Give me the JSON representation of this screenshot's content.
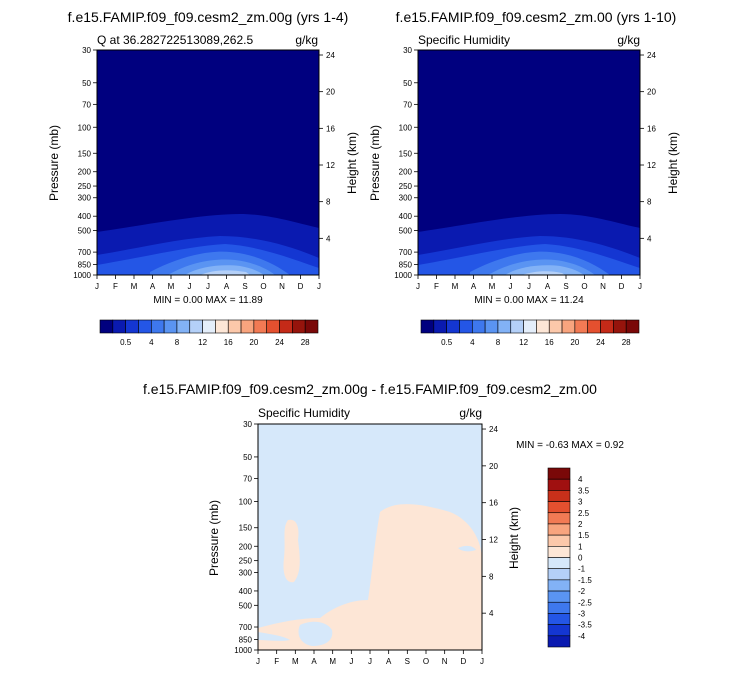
{
  "panels": [
    {
      "title": "f.e15.FAMIP.f09_f09.cesm2_zm.00g (yrs 1-4)",
      "left_label": "Q at 36.282722513089,262.5",
      "units": "g/kg",
      "ylabel": "Pressure (mb)",
      "y2label": "Height (km)",
      "stats": "MIN =   0.00 MAX =  11.89"
    },
    {
      "title": "f.e15.FAMIP.f09_f09.cesm2_zm.00 (yrs 1-10)",
      "left_label": "Specific Humidity",
      "units": "g/kg",
      "ylabel": "Pressure (mb)",
      "y2label": "Height (km)",
      "stats": "MIN =   0.00 MAX =  11.24"
    },
    {
      "title": "f.e15.FAMIP.f09_f09.cesm2_zm.00g - f.e15.FAMIP.f09_f09.cesm2_zm.00",
      "left_label": "Specific Humidity",
      "units": "g/kg",
      "ylabel": "Pressure (mb)",
      "y2label": "Height (km)",
      "stats": "MIN =  -0.63 MAX =   0.92"
    }
  ],
  "chart_data": [
    {
      "type": "heatmap",
      "title": "f.e15.FAMIP.f09_f09.cesm2_zm.00g (yrs 1-4)",
      "x_ticks": [
        "J",
        "F",
        "M",
        "A",
        "M",
        "J",
        "J",
        "A",
        "S",
        "O",
        "N",
        "D",
        "J"
      ],
      "y_ticks": [
        "30",
        "50",
        "70",
        "100",
        "150",
        "200",
        "250",
        "300",
        "400",
        "500",
        "700",
        "850",
        "1000"
      ],
      "y2_ticks": [
        "24",
        "20",
        "16",
        "12",
        "8",
        "4"
      ],
      "ylabel": "Pressure (mb)",
      "y2label": "Height (km)",
      "min": 0.0,
      "max": 11.89,
      "colorbar_labels": [
        "0.5",
        "4",
        "8",
        "12",
        "16",
        "20",
        "24",
        "28"
      ]
    },
    {
      "type": "heatmap",
      "title": "f.e15.FAMIP.f09_f09.cesm2_zm.00 (yrs 1-10)",
      "x_ticks": [
        "J",
        "F",
        "M",
        "A",
        "M",
        "J",
        "J",
        "A",
        "S",
        "O",
        "N",
        "D",
        "J"
      ],
      "y_ticks": [
        "30",
        "50",
        "70",
        "100",
        "150",
        "200",
        "250",
        "300",
        "400",
        "500",
        "700",
        "850",
        "1000"
      ],
      "y2_ticks": [
        "24",
        "20",
        "16",
        "12",
        "8",
        "4"
      ],
      "ylabel": "Pressure (mb)",
      "y2label": "Height (km)",
      "min": 0.0,
      "max": 11.24,
      "colorbar_labels": [
        "0.5",
        "4",
        "8",
        "12",
        "16",
        "20",
        "24",
        "28"
      ]
    },
    {
      "type": "heatmap",
      "title": "f.e15.FAMIP.f09_f09.cesm2_zm.00g - f.e15.FAMIP.f09_f09.cesm2_zm.00",
      "x_ticks": [
        "J",
        "F",
        "M",
        "A",
        "M",
        "J",
        "J",
        "A",
        "S",
        "O",
        "N",
        "D",
        "J"
      ],
      "y_ticks": [
        "30",
        "50",
        "70",
        "100",
        "150",
        "200",
        "250",
        "300",
        "400",
        "500",
        "700",
        "850",
        "1000"
      ],
      "y2_ticks": [
        "24",
        "20",
        "16",
        "12",
        "8",
        "4"
      ],
      "ylabel": "Pressure (mb)",
      "y2label": "Height (km)",
      "min": -0.63,
      "max": 0.92,
      "colorbar_labels": [
        "4",
        "3.5",
        "3",
        "2.5",
        "2",
        "1.5",
        "1",
        "0",
        "-1",
        "-1.5",
        "-2",
        "-2.5",
        "-3",
        "-3.5",
        "-4"
      ]
    }
  ],
  "colorbar_main": {
    "colors": [
      "#00007f",
      "#0a1ab0",
      "#1436d2",
      "#2456e6",
      "#3e78ee",
      "#5a94f2",
      "#82b2f6",
      "#b4d0f8",
      "#e4eefa",
      "#fde6d6",
      "#fcc8aa",
      "#f8a47e",
      "#f27a54",
      "#e4502f",
      "#c42a18",
      "#96140c",
      "#7a0808"
    ]
  },
  "colorbar_diff": {
    "colors": [
      "#7a0808",
      "#a01010",
      "#c8301a",
      "#e4502f",
      "#f27a54",
      "#f8a47e",
      "#fcc8aa",
      "#fde6d6",
      "#d6e8fa",
      "#b4d0f8",
      "#82b2f6",
      "#5a94f2",
      "#3e78ee",
      "#2456e6",
      "#1436d2",
      "#0a1ab0"
    ]
  }
}
